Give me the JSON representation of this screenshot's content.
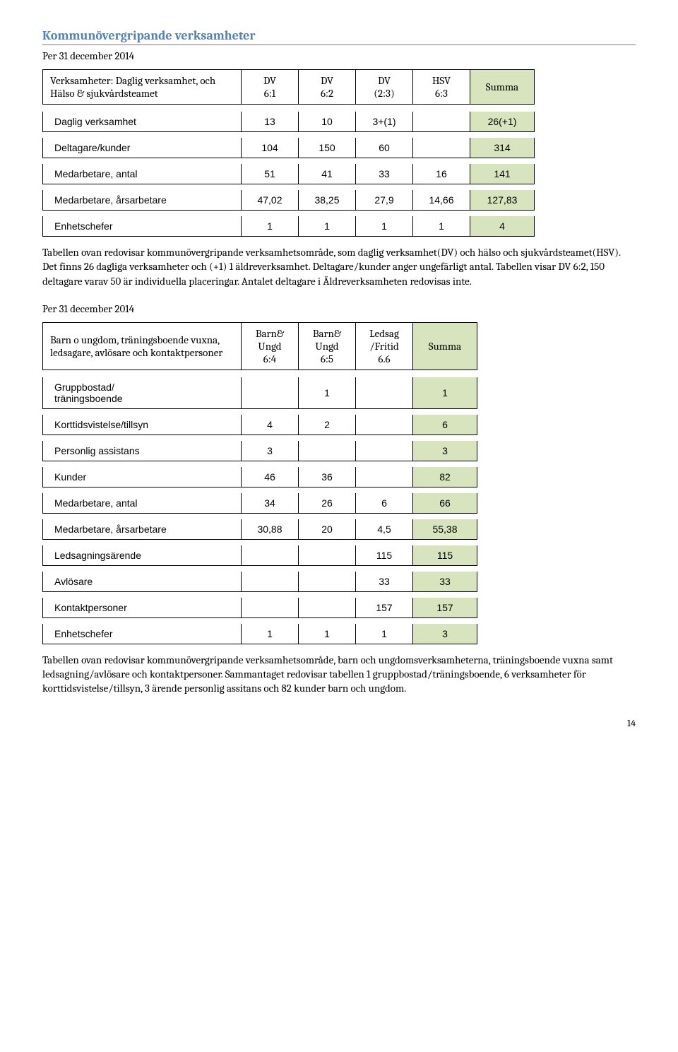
{
  "heading": "Kommunövergripande verksamheter",
  "subline": "Per 31 december 2014",
  "table1": {
    "title": "Verksamheter: Daglig verksamhet, och Hälso & sjukvårdsteamet",
    "cols": [
      {
        "l1": "DV",
        "l2": "6:1"
      },
      {
        "l1": "DV",
        "l2": "6:2"
      },
      {
        "l1": "DV",
        "l2": "(2:3)"
      },
      {
        "l1": "HSV",
        "l2": "6:3"
      }
    ],
    "summa": "Summa",
    "rows": [
      {
        "label": "Daglig verksamhet",
        "c": [
          "13",
          "10",
          "3+(1)",
          ""
        ],
        "sum": "26(+1)"
      },
      {
        "label": "Deltagare/kunder",
        "c": [
          "104",
          "150",
          "60",
          ""
        ],
        "sum": "314"
      },
      {
        "label": "Medarbetare, antal",
        "c": [
          "51",
          "41",
          "33",
          "16"
        ],
        "sum": "141"
      },
      {
        "label": "Medarbetare, årsarbetare",
        "c": [
          "47,02",
          "38,25",
          "27,9",
          "14,66"
        ],
        "sum": "127,83"
      },
      {
        "label": "Enhetschefer",
        "c": [
          "1",
          "1",
          "1",
          "1"
        ],
        "sum": "4"
      }
    ]
  },
  "para1": "Tabellen ovan redovisar kommunövergripande verksamhetsområde, som daglig verksamhet(DV) och hälso och sjukvårdsteamet(HSV). Det finns 26 dagliga verksamheter och (+1) 1 äldreverksamhet. Deltagare/kunder anger ungefärligt antal. Tabellen visar DV 6:2, 150 deltagare varav 50 är individuella placeringar. Antalet deltagare i Äldreverksamheten redovisas inte.",
  "subline2": "Per 31 december 2014",
  "table2": {
    "title": "Barn o ungdom, träningsboende vuxna, ledsagare, avlösare och kontaktpersoner",
    "cols": [
      {
        "l1": "Barn&",
        "l2": "Ungd",
        "l3": "6:4"
      },
      {
        "l1": "Barn&",
        "l2": "Ungd",
        "l3": "6:5"
      },
      {
        "l1": "Ledsag",
        "l2": "/Fritid",
        "l3": "6.6"
      }
    ],
    "summa": "Summa",
    "rows": [
      {
        "label": "Gruppbostad/\n träningsboende",
        "c": [
          "",
          "1",
          ""
        ],
        "sum": "1"
      },
      {
        "label": "Korttidsvistelse/tillsyn",
        "c": [
          "4",
          "2",
          ""
        ],
        "sum": "6"
      },
      {
        "label": "Personlig assistans",
        "c": [
          "3",
          "",
          ""
        ],
        "sum": "3"
      },
      {
        "label": "Kunder",
        "c": [
          "46",
          "36",
          ""
        ],
        "sum": "82"
      },
      {
        "label": "Medarbetare, antal",
        "c": [
          "34",
          "26",
          "6"
        ],
        "sum": "66"
      },
      {
        "label": "Medarbetare, årsarbetare",
        "c": [
          "30,88",
          "20",
          "4,5"
        ],
        "sum": "55,38"
      },
      {
        "label": "Ledsagningsärende",
        "c": [
          "",
          "",
          "115"
        ],
        "sum": "115"
      },
      {
        "label": "Avlösare",
        "c": [
          "",
          "",
          "33"
        ],
        "sum": "33"
      },
      {
        "label": "Kontaktpersoner",
        "c": [
          "",
          "",
          "157"
        ],
        "sum": "157"
      },
      {
        "label": "Enhetschefer",
        "c": [
          "1",
          "1",
          "1"
        ],
        "sum": "3"
      }
    ]
  },
  "para2": "Tabellen ovan redovisar kommunövergripande verksamhetsområde, barn och ungdomsverksamheterna, träningsboende vuxna samt ledsagning/avlösare och kontaktpersoner. Sammantaget redovisar tabellen 1 gruppbostad/träningsboende, 6 verksamheter för korttidsvistelse/tillsyn, 3 ärende personlig assitans och 82 kunder barn och ungdom.",
  "pagenum": "14",
  "colors": {
    "heading": "#4f81bd",
    "summa_bg": "#d7e4bd",
    "border": "#000000",
    "bg": "#ffffff"
  }
}
